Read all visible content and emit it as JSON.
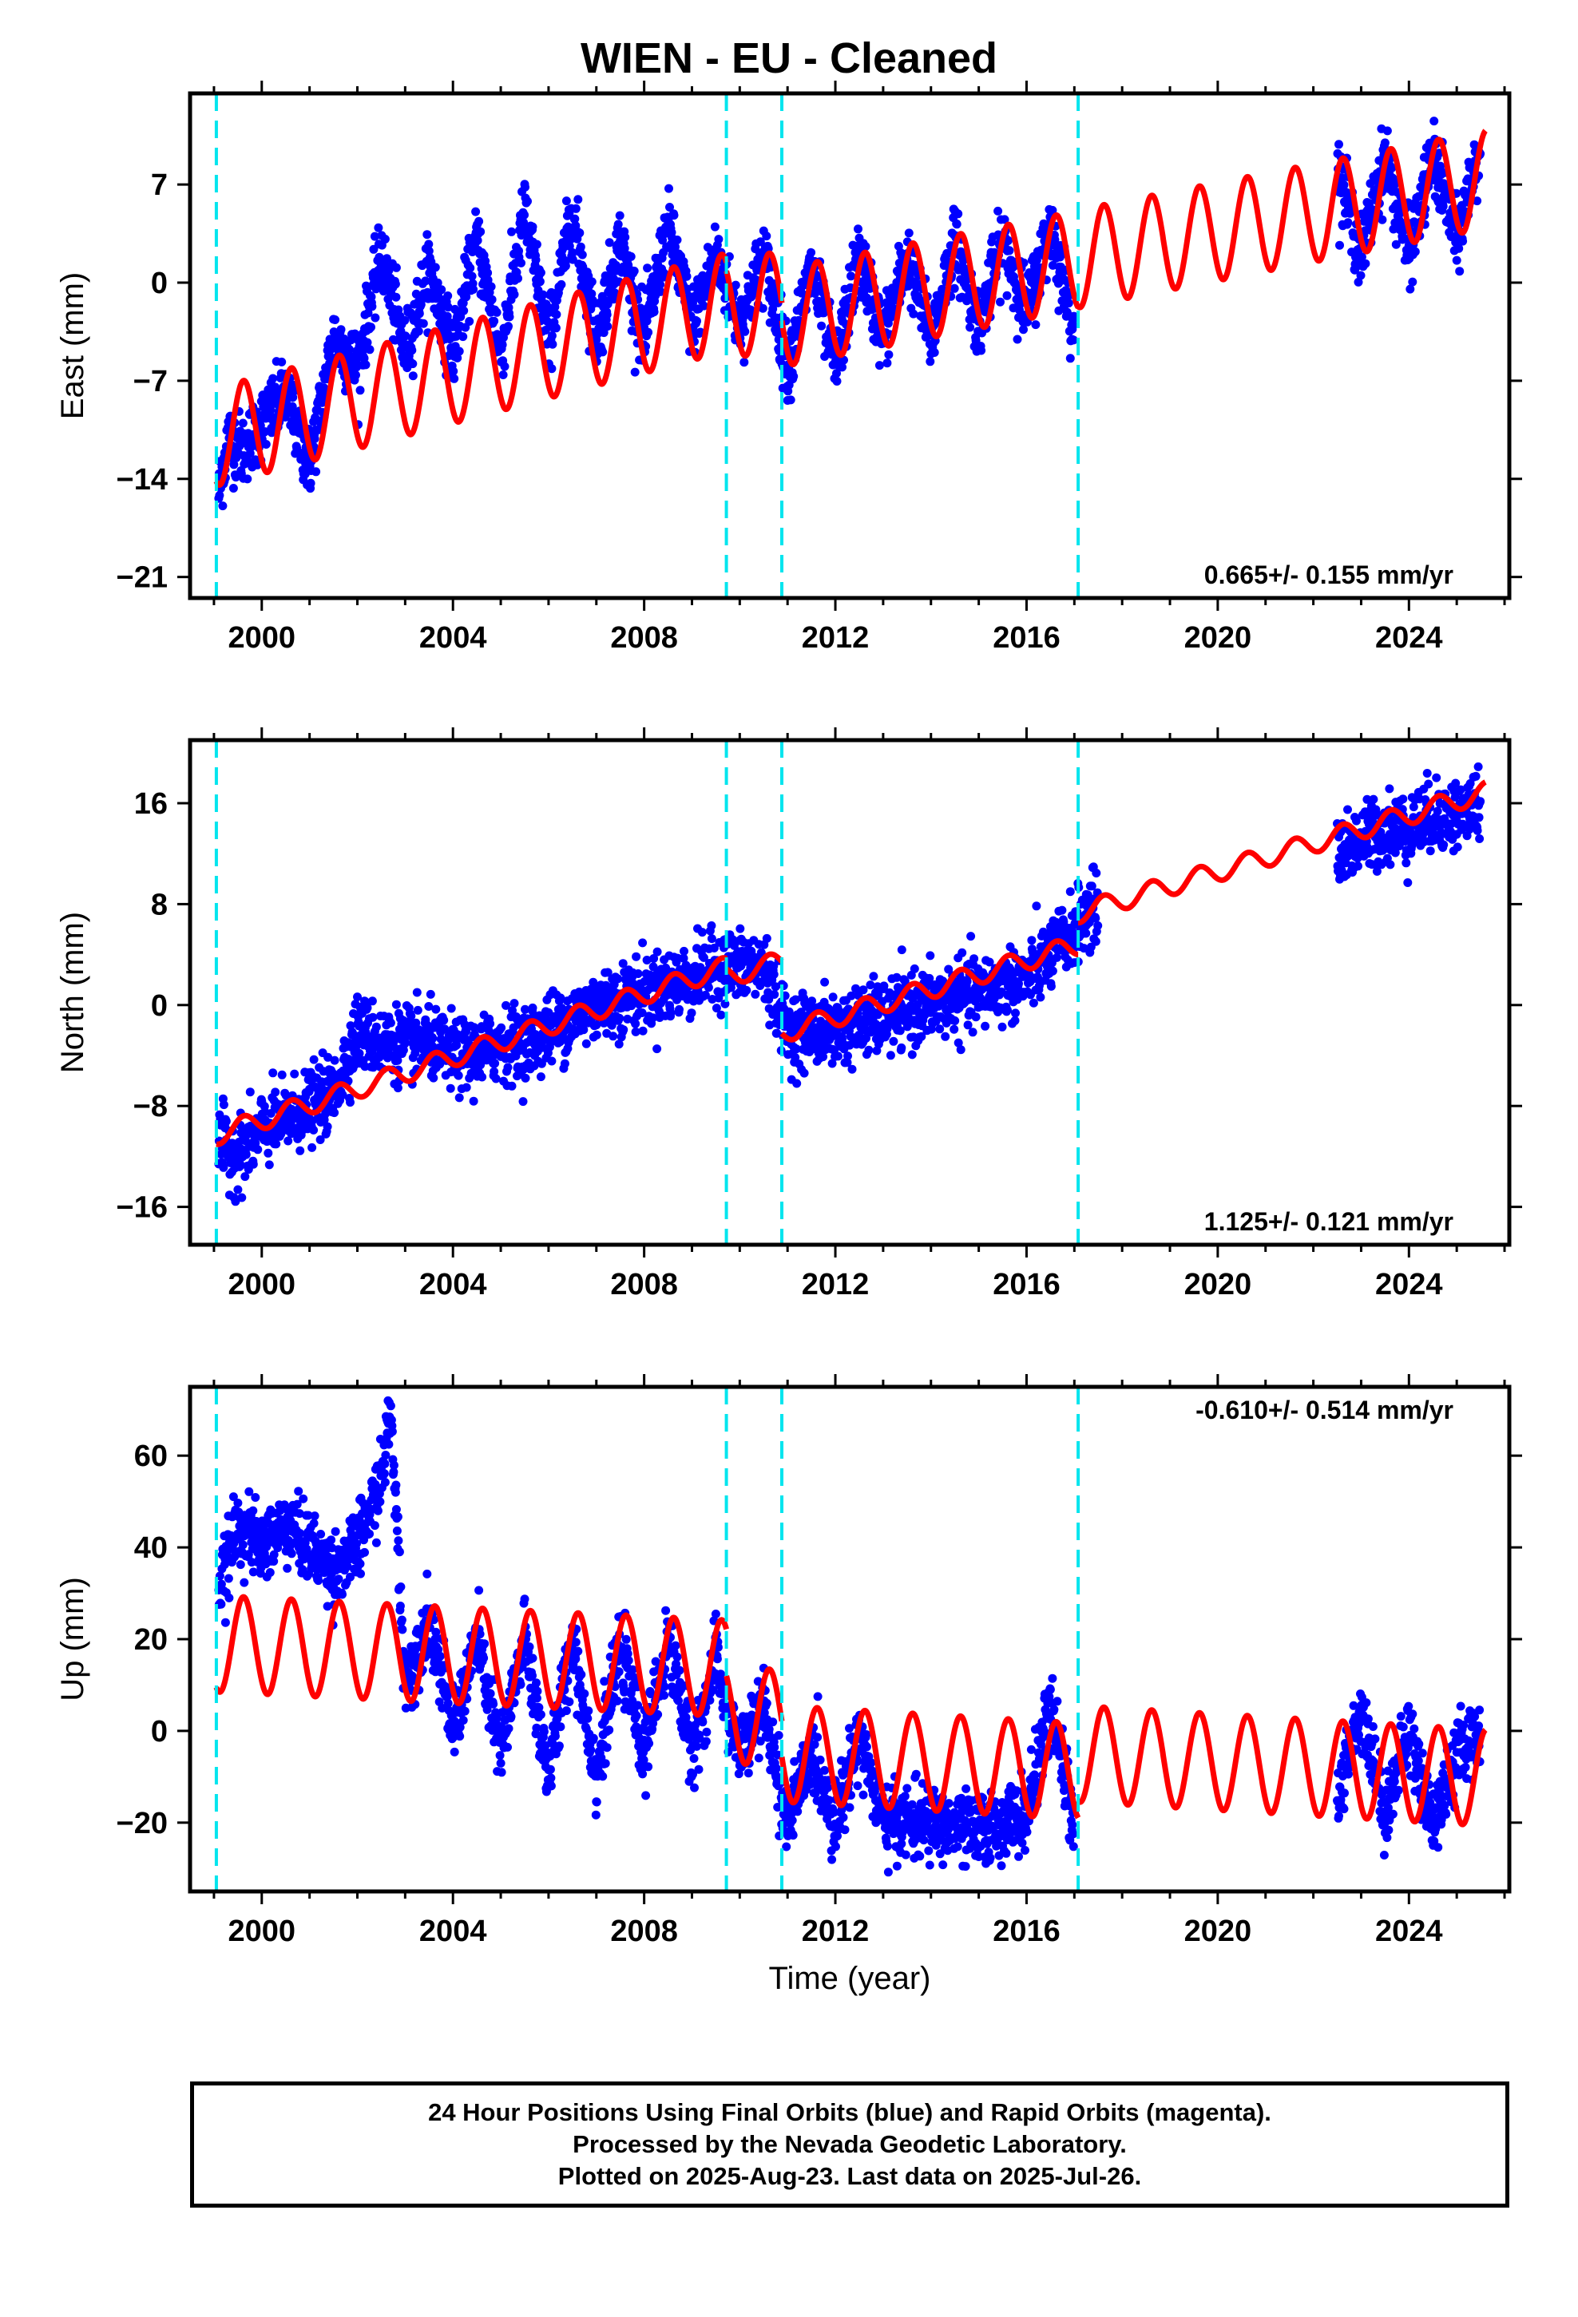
{
  "title": "WIEN  - EU - Cleaned",
  "footer": {
    "line1": "24 Hour Positions Using Final Orbits (blue) and Rapid Orbits (magenta).",
    "line2": "Processed by the Nevada Geodetic Laboratory.",
    "line3": "Plotted on 2025-Aug-23. Last data on 2025-Jul-26."
  },
  "colors": {
    "data": "#0000ff",
    "model": "#ff0000",
    "events": "#00e5ee",
    "frame": "#000000"
  },
  "chart_data": [
    {
      "type": "scatter",
      "component": "East",
      "ylabel": "East (mm)",
      "xlim": [
        1998.5,
        2026.1
      ],
      "ylim": [
        -22.5,
        13.5
      ],
      "yticks": [
        7,
        0,
        -7,
        -14,
        -21
      ],
      "ytick_labels": [
        "7",
        "0",
        "−7",
        "−14",
        "−21"
      ],
      "xticks": [
        2000,
        2004,
        2008,
        2012,
        2016,
        2020,
        2024
      ],
      "xtick_labels": [
        "2000",
        "2004",
        "2008",
        "2012",
        "2016",
        "2020",
        "2024"
      ],
      "rate_text": "0.665+/- 0.155 mm/yr",
      "rate_position": "bottom-right",
      "event_lines": [
        1999.05,
        2009.72,
        2010.88,
        2017.08
      ],
      "series": [
        {
          "role": "data",
          "x": [
            1999.1,
            1999.3,
            1999.6,
            2000.0,
            2000.5,
            2001.0,
            2001.5,
            2002.0,
            2002.5,
            2003.0,
            2003.5,
            2004.0,
            2004.5,
            2005.0,
            2005.5,
            2006.0,
            2006.5,
            2007.0,
            2007.5,
            2008.0,
            2008.5,
            2009.0,
            2009.5,
            2010.0,
            2010.5,
            2011.0,
            2011.5,
            2012.0,
            2012.5,
            2013.0,
            2013.5,
            2014.0,
            2014.5,
            2015.0,
            2015.5,
            2016.0,
            2016.5,
            2017.0,
            2022.5,
            2023.0,
            2023.5,
            2024.0,
            2024.5,
            2025.0,
            2025.5
          ],
          "y": [
            -15,
            -11,
            -12,
            -10,
            -8,
            -13,
            -4,
            -6,
            2,
            -5,
            1,
            -5,
            3,
            -5,
            5,
            -4,
            5,
            -4,
            3,
            -4,
            4,
            -3,
            2,
            -3,
            2,
            -6,
            1,
            -6,
            2,
            -4,
            2,
            -4,
            3,
            -3,
            3,
            -2,
            4,
            -3,
            8,
            2,
            9,
            2,
            9,
            3,
            10
          ]
        },
        {
          "role": "model",
          "name": "",
          "amplitude": 3.5,
          "phase": 0.37,
          "segments": [
            {
              "x0": 1999.05,
              "x1": 2009.72,
              "y0": -11.0,
              "slope": 0.9
            },
            {
              "x0": 2009.72,
              "x1": 2010.88,
              "y0": -2.0,
              "slope": 0.665
            },
            {
              "x0": 2010.88,
              "x1": 2017.08,
              "y0": -2.5,
              "slope": 0.665
            },
            {
              "x0": 2017.08,
              "x1": 2025.6,
              "y0": 1.7,
              "slope": 0.665
            }
          ]
        }
      ]
    },
    {
      "type": "scatter",
      "component": "North",
      "ylabel": "North (mm)",
      "xlim": [
        1998.5,
        2026.1
      ],
      "ylim": [
        -19,
        21
      ],
      "yticks": [
        16,
        8,
        0,
        -8,
        -16
      ],
      "ytick_labels": [
        "16",
        "8",
        "0",
        "−8",
        "−16"
      ],
      "xticks": [
        2000,
        2004,
        2008,
        2012,
        2016,
        2020,
        2024
      ],
      "xtick_labels": [
        "2000",
        "2004",
        "2008",
        "2012",
        "2016",
        "2020",
        "2024"
      ],
      "rate_text": "1.125+/- 0.121 mm/yr",
      "rate_position": "bottom-right",
      "event_lines": [
        1999.05,
        2009.72,
        2010.88,
        2017.08
      ],
      "series": [
        {
          "role": "data",
          "x": [
            1999.1,
            1999.5,
            2000.0,
            2000.5,
            2001.0,
            2001.5,
            2002.0,
            2002.5,
            2003.0,
            2003.5,
            2004.0,
            2004.5,
            2005.0,
            2005.5,
            2006.0,
            2007.0,
            2008.0,
            2009.0,
            2009.5,
            2010.0,
            2010.5,
            2011.0,
            2011.5,
            2012.0,
            2013.0,
            2014.0,
            2015.0,
            2016.0,
            2016.5,
            2017.0,
            2017.5,
            2022.5,
            2023.0,
            2023.5,
            2024.0,
            2024.5,
            2025.0,
            2025.5
          ],
          "y": [
            -11,
            -12,
            -10,
            -9,
            -8,
            -7,
            -2,
            -3,
            -3,
            -3,
            -4,
            -4,
            -3,
            -3,
            -2,
            0,
            1,
            2,
            3,
            3,
            3,
            -2,
            -2,
            -2,
            -1,
            0,
            1,
            2,
            4,
            6,
            8,
            12,
            13,
            14,
            14,
            15,
            15,
            16
          ]
        },
        {
          "role": "model",
          "name": "",
          "amplitude": 0.8,
          "phase": 0.37,
          "segments": [
            {
              "x0": 1999.05,
              "x1": 2009.72,
              "y0": -10.3,
              "slope": 1.25
            },
            {
              "x0": 2009.72,
              "x1": 2010.88,
              "y0": 2.2,
              "slope": 1.125
            },
            {
              "x0": 2010.88,
              "x1": 2017.08,
              "y0": -2.2,
              "slope": 1.125
            },
            {
              "x0": 2017.08,
              "x1": 2025.6,
              "y0": 7.3,
              "slope": 1.125
            }
          ]
        }
      ]
    },
    {
      "type": "scatter",
      "component": "Up",
      "ylabel": "Up (mm)",
      "xlim": [
        1998.5,
        2026.1
      ],
      "ylim": [
        -35,
        75
      ],
      "yticks": [
        60,
        40,
        20,
        0,
        -20
      ],
      "ytick_labels": [
        "60",
        "40",
        "20",
        "0",
        "−20"
      ],
      "xticks": [
        2000,
        2004,
        2008,
        2012,
        2016,
        2020,
        2024
      ],
      "xtick_labels": [
        "2000",
        "2004",
        "2008",
        "2012",
        "2016",
        "2020",
        "2024"
      ],
      "rate_text": "-0.610+/- 0.514 mm/yr",
      "rate_position": "top-right",
      "event_lines": [
        1999.05,
        2009.72,
        2010.88,
        2017.08
      ],
      "series": [
        {
          "role": "data",
          "x": [
            1999.1,
            1999.5,
            2000.0,
            2000.5,
            2001.0,
            2001.5,
            2002.0,
            2002.5,
            2002.7,
            2003.0,
            2003.5,
            2004.0,
            2004.5,
            2005.0,
            2005.5,
            2006.0,
            2006.5,
            2007.0,
            2007.5,
            2008.0,
            2008.5,
            2009.0,
            2009.5,
            2010.0,
            2010.5,
            2011.0,
            2011.5,
            2012.0,
            2012.5,
            2013.0,
            2014.0,
            2015.0,
            2016.0,
            2016.5,
            2017.0,
            2022.5,
            2023.0,
            2023.5,
            2024.0,
            2024.5,
            2025.0,
            2025.5
          ],
          "y": [
            30,
            45,
            40,
            45,
            40,
            35,
            40,
            55,
            70,
            10,
            25,
            0,
            20,
            -5,
            20,
            -10,
            20,
            -10,
            18,
            -5,
            20,
            -5,
            15,
            -5,
            5,
            -20,
            -5,
            -20,
            0,
            -20,
            -20,
            -22,
            -18,
            5,
            -20,
            -15,
            5,
            -18,
            0,
            -20,
            -5,
            0
          ]
        },
        {
          "role": "model",
          "name": "",
          "amplitude": 10.5,
          "phase": 0.37,
          "segments": [
            {
              "x0": 1999.05,
              "x1": 2009.72,
              "y0": 19.0,
              "slope": -0.5
            },
            {
              "x0": 2009.72,
              "x1": 2010.88,
              "y0": 3.5,
              "slope": -0.61
            },
            {
              "x0": 2010.88,
              "x1": 2017.08,
              "y0": -5.0,
              "slope": -0.61
            },
            {
              "x0": 2017.08,
              "x1": 2025.6,
              "y0": -5.0,
              "slope": -0.61
            }
          ]
        }
      ]
    }
  ],
  "xlabel": "Time (year)"
}
